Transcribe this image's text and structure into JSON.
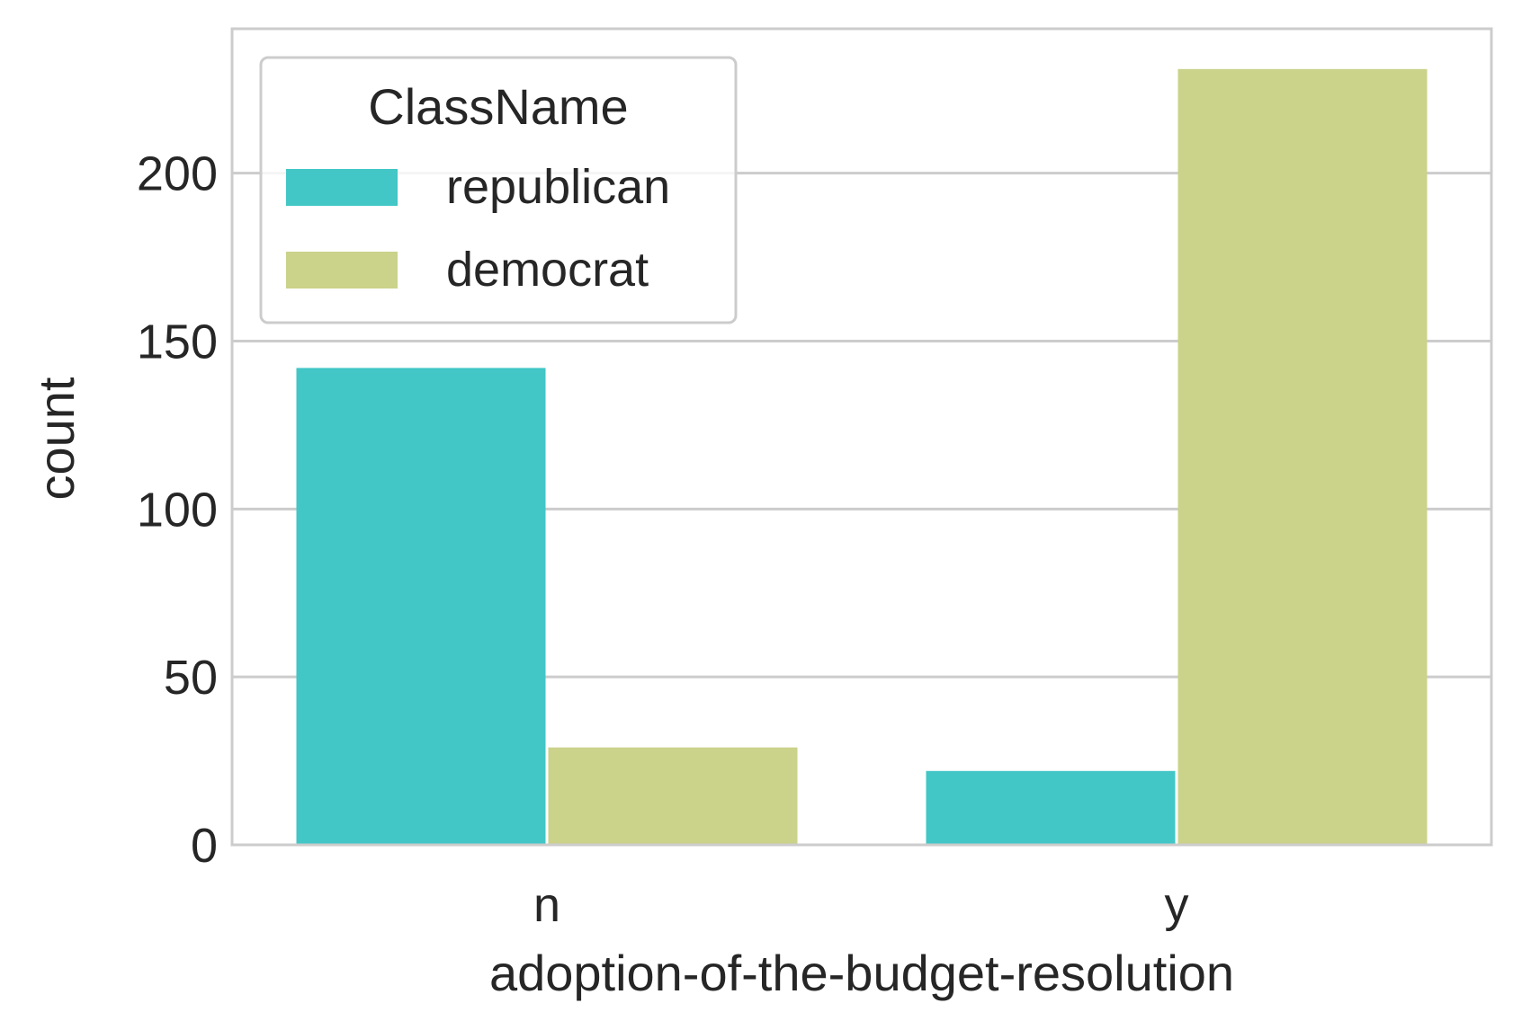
{
  "chart_data": {
    "type": "bar",
    "categories": [
      "n",
      "y"
    ],
    "series": [
      {
        "name": "republican",
        "values": [
          142,
          22
        ],
        "color": "#42c6c6"
      },
      {
        "name": "democrat",
        "values": [
          29,
          231
        ],
        "color": "#cbd28a"
      }
    ],
    "xlabel": "adoption-of-the-budget-resolution",
    "ylabel": "count",
    "ylim": [
      0,
      243
    ],
    "yticks": [
      0,
      50,
      100,
      150,
      200
    ],
    "grid": "horizontal",
    "legend": {
      "title": "ClassName",
      "placement": "top-left"
    }
  }
}
